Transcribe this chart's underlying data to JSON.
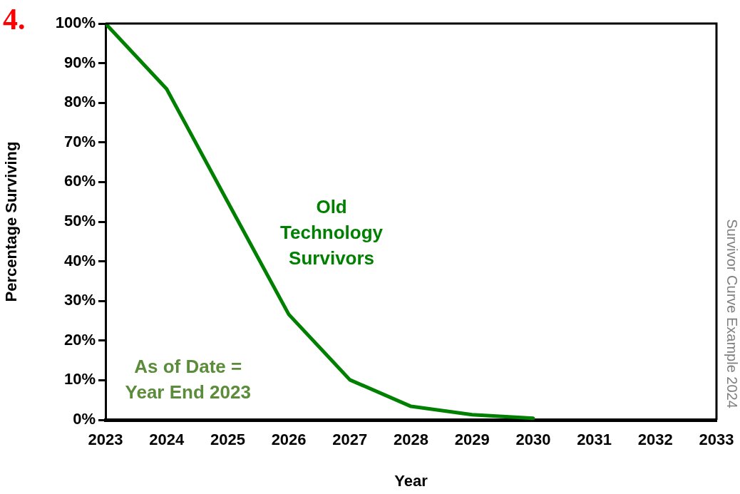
{
  "chart_data": {
    "type": "line",
    "xlabel": "Year",
    "ylabel": "Percentage Surviving",
    "x": [
      2023,
      2024,
      2025,
      2026,
      2027,
      2028,
      2029,
      2030
    ],
    "series": [
      {
        "name": "Old Technology Survivors",
        "color": "#008000",
        "values": [
          100,
          83.5,
          55,
          26.6,
          10.1,
          3.4,
          1.3,
          0.4
        ]
      }
    ],
    "xlim": [
      2023,
      2033
    ],
    "xticks": [
      2023,
      2024,
      2025,
      2026,
      2027,
      2028,
      2029,
      2030,
      2031,
      2032,
      2033
    ],
    "ylim": [
      0,
      100
    ],
    "yticks": [
      {
        "value": 0,
        "label": "0%"
      },
      {
        "value": 10,
        "label": "10%"
      },
      {
        "value": 20,
        "label": "20%"
      },
      {
        "value": 30,
        "label": "30%"
      },
      {
        "value": 40,
        "label": "40%"
      },
      {
        "value": 50,
        "label": "50%"
      },
      {
        "value": 60,
        "label": "60%"
      },
      {
        "value": 70,
        "label": "70%"
      },
      {
        "value": 80,
        "label": "80%"
      },
      {
        "value": 90,
        "label": "90%"
      },
      {
        "value": 100,
        "label": "100%"
      }
    ],
    "annotations": [
      "4.",
      "As of Date =\nYear End 2023",
      "Survivor Curve Example 2024"
    ],
    "marker": "none",
    "line_style": "solid"
  }
}
